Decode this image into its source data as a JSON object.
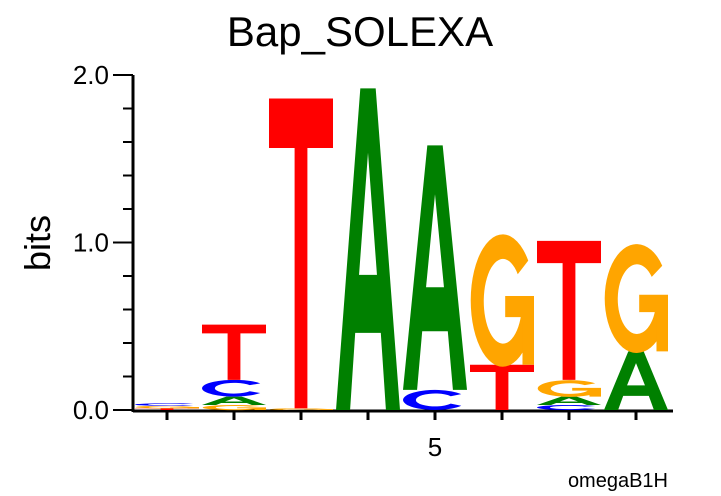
{
  "chart_data": {
    "type": "sequence-logo",
    "title": "Bap_SOLEXA",
    "ylabel": "bits",
    "footer": "omegaB1H",
    "ylim": [
      0,
      2.0
    ],
    "yticks": [
      {
        "value": 0,
        "label": "0.0"
      },
      {
        "value": 1,
        "label": "1.0"
      },
      {
        "value": 2,
        "label": "2.0"
      }
    ],
    "xticks_labeled": [
      {
        "position": 5,
        "label": "5"
      }
    ],
    "positions": [
      {
        "position": 1,
        "stack": [
          {
            "base": "T",
            "bits": 0.01
          },
          {
            "base": "G",
            "bits": 0.015
          },
          {
            "base": "C",
            "bits": 0.015
          }
        ]
      },
      {
        "position": 2,
        "stack": [
          {
            "base": "G",
            "bits": 0.03
          },
          {
            "base": "A",
            "bits": 0.05
          },
          {
            "base": "C",
            "bits": 0.1
          },
          {
            "base": "T",
            "bits": 0.33
          }
        ]
      },
      {
        "position": 3,
        "stack": [
          {
            "base": "G",
            "bits": 0.01
          },
          {
            "base": "T",
            "bits": 1.85
          }
        ]
      },
      {
        "position": 4,
        "stack": [
          {
            "base": "A",
            "bits": 1.92
          }
        ]
      },
      {
        "position": 5,
        "stack": [
          {
            "base": "C",
            "bits": 0.12
          },
          {
            "base": "A",
            "bits": 1.46
          }
        ]
      },
      {
        "position": 6,
        "stack": [
          {
            "base": "T",
            "bits": 0.27
          },
          {
            "base": "G",
            "bits": 0.79
          }
        ]
      },
      {
        "position": 7,
        "stack": [
          {
            "base": "C",
            "bits": 0.03
          },
          {
            "base": "A",
            "bits": 0.05
          },
          {
            "base": "G",
            "bits": 0.1
          },
          {
            "base": "T",
            "bits": 0.83
          }
        ]
      },
      {
        "position": 8,
        "stack": [
          {
            "base": "A",
            "bits": 0.35
          },
          {
            "base": "G",
            "bits": 0.65
          }
        ]
      }
    ],
    "colors": {
      "A": "#008000",
      "C": "#0000ff",
      "G": "#ffa500",
      "T": "#ff0000"
    }
  }
}
